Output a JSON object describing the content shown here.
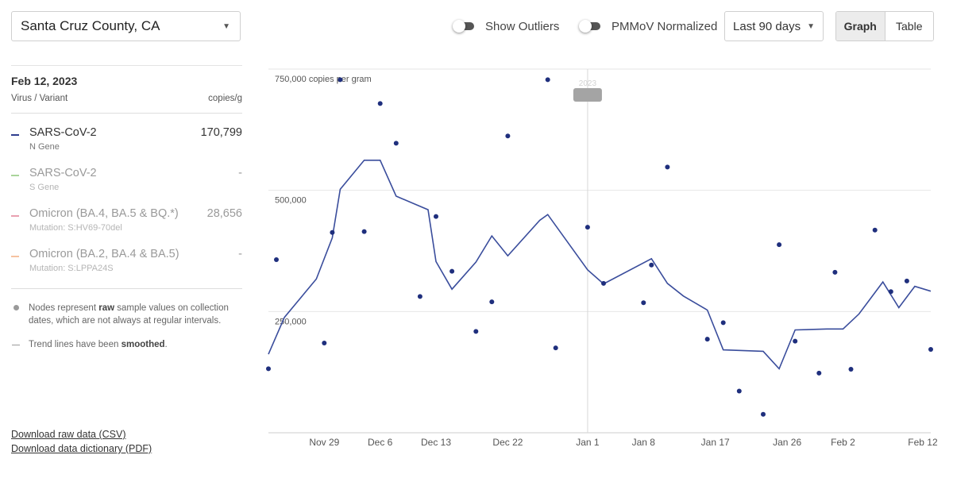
{
  "county_select": {
    "value": "Santa Cruz County, CA"
  },
  "toggles": {
    "outliers_label": "Show Outliers",
    "pmmov_label": "PMMoV Normalized"
  },
  "range_select": {
    "value": "Last 90 days"
  },
  "view": {
    "graph_label": "Graph",
    "table_label": "Table",
    "active": "Graph"
  },
  "legend": {
    "date": "Feb 12, 2023",
    "col_left": "Virus / Variant",
    "col_right": "copies/g",
    "items": [
      {
        "name": "SARS-CoV-2",
        "sub": "N Gene",
        "value": "170,799",
        "color": "#2f3e8f"
      },
      {
        "name": "SARS-CoV-2",
        "sub": "S Gene",
        "value": "-",
        "color": "#a9d49b"
      },
      {
        "name": "Omicron (BA.4, BA.5 & BQ.*)",
        "sub": "Mutation: S:HV69-70del",
        "value": "28,656",
        "color": "#e9a0b0"
      },
      {
        "name": "Omicron (BA.2, BA.4 & BA.5)",
        "sub": "Mutation: S:LPPA24S",
        "value": "-",
        "color": "#f6c2a0"
      }
    ],
    "note1_pre": "Nodes represent ",
    "note1_bold": "raw",
    "note1_post": " sample values on collection dates, which are not always at regular intervals.",
    "note2_pre": "Trend lines have been ",
    "note2_bold": "smoothed",
    "note2_post": "."
  },
  "downloads": {
    "csv": "Download raw data (CSV)",
    "pdf": "Download data dictionary (PDF)"
  },
  "chart_data": {
    "type": "scatter",
    "ylabel": "copies per gram",
    "ylim": [
      0,
      750000
    ],
    "yticks": [
      {
        "value": 250000,
        "label": "250,000"
      },
      {
        "value": 500000,
        "label": "500,000"
      },
      {
        "value": 750000,
        "label": "750,000 copies per gram"
      }
    ],
    "xlim": [
      "2022-11-22",
      "2023-02-13"
    ],
    "xticks": [
      {
        "date": "2022-11-29",
        "label": "Nov 29"
      },
      {
        "date": "2022-12-06",
        "label": "Dec 6"
      },
      {
        "date": "2022-12-13",
        "label": "Dec 13"
      },
      {
        "date": "2022-12-22",
        "label": "Dec 22"
      },
      {
        "date": "2023-01-01",
        "label": "Jan 1"
      },
      {
        "date": "2023-01-08",
        "label": "Jan 8"
      },
      {
        "date": "2023-01-17",
        "label": "Jan 17"
      },
      {
        "date": "2023-01-26",
        "label": "Jan 26"
      },
      {
        "date": "2023-02-02",
        "label": "Feb 2"
      },
      {
        "date": "2023-02-12",
        "label": "Feb 12"
      }
    ],
    "hover_date": "2023-01-01",
    "hover_tooltip": "2023",
    "grid": true,
    "series": [
      {
        "name": "SARS-CoV-2",
        "color": "#1f2f7d",
        "points": [
          [
            "2022-11-22",
            132000
          ],
          [
            "2022-11-23",
            357000
          ],
          [
            "2022-11-29",
            185000
          ],
          [
            "2022-11-30",
            413000
          ],
          [
            "2022-12-01",
            728000
          ],
          [
            "2022-12-04",
            415000
          ],
          [
            "2022-12-06",
            679000
          ],
          [
            "2022-12-08",
            597000
          ],
          [
            "2022-12-11",
            281000
          ],
          [
            "2022-12-13",
            446000
          ],
          [
            "2022-12-15",
            333000
          ],
          [
            "2022-12-18",
            209000
          ],
          [
            "2022-12-20",
            270000
          ],
          [
            "2022-12-22",
            612000
          ],
          [
            "2022-12-27",
            728000
          ],
          [
            "2022-12-28",
            175000
          ],
          [
            "2023-01-01",
            424000
          ],
          [
            "2023-01-03",
            308000
          ],
          [
            "2023-01-08",
            268000
          ],
          [
            "2023-01-09",
            346000
          ],
          [
            "2023-01-11",
            548000
          ],
          [
            "2023-01-16",
            193000
          ],
          [
            "2023-01-18",
            227000
          ],
          [
            "2023-01-20",
            86000
          ],
          [
            "2023-01-23",
            38000
          ],
          [
            "2023-01-25",
            388000
          ],
          [
            "2023-01-27",
            189000
          ],
          [
            "2023-01-30",
            123000
          ],
          [
            "2023-02-01",
            331000
          ],
          [
            "2023-02-03",
            131000
          ],
          [
            "2023-02-06",
            418000
          ],
          [
            "2023-02-08",
            291000
          ],
          [
            "2023-02-10",
            313000
          ],
          [
            "2023-02-13",
            172000
          ]
        ],
        "trend": [
          [
            "2022-11-22",
            162000
          ],
          [
            "2022-11-24",
            238000
          ],
          [
            "2022-11-28",
            317000
          ],
          [
            "2022-11-30",
            402000
          ],
          [
            "2022-12-01",
            502000
          ],
          [
            "2022-12-04",
            562000
          ],
          [
            "2022-12-06",
            562000
          ],
          [
            "2022-12-08",
            488000
          ],
          [
            "2022-12-12",
            460000
          ],
          [
            "2022-12-13",
            353000
          ],
          [
            "2022-12-15",
            296000
          ],
          [
            "2022-12-18",
            352000
          ],
          [
            "2022-12-20",
            406000
          ],
          [
            "2022-12-22",
            365000
          ],
          [
            "2022-12-26",
            438000
          ],
          [
            "2022-12-27",
            450000
          ],
          [
            "2023-01-01",
            336000
          ],
          [
            "2023-01-03",
            307000
          ],
          [
            "2023-01-09",
            359000
          ],
          [
            "2023-01-11",
            308000
          ],
          [
            "2023-01-13",
            282000
          ],
          [
            "2023-01-16",
            253000
          ],
          [
            "2023-01-18",
            171000
          ],
          [
            "2023-01-23",
            168000
          ],
          [
            "2023-01-25",
            132000
          ],
          [
            "2023-01-27",
            212000
          ],
          [
            "2023-01-31",
            214000
          ],
          [
            "2023-02-02",
            214000
          ],
          [
            "2023-02-04",
            245000
          ],
          [
            "2023-02-07",
            311000
          ],
          [
            "2023-02-09",
            258000
          ],
          [
            "2023-02-11",
            302000
          ],
          [
            "2023-02-13",
            292000
          ]
        ]
      }
    ]
  }
}
